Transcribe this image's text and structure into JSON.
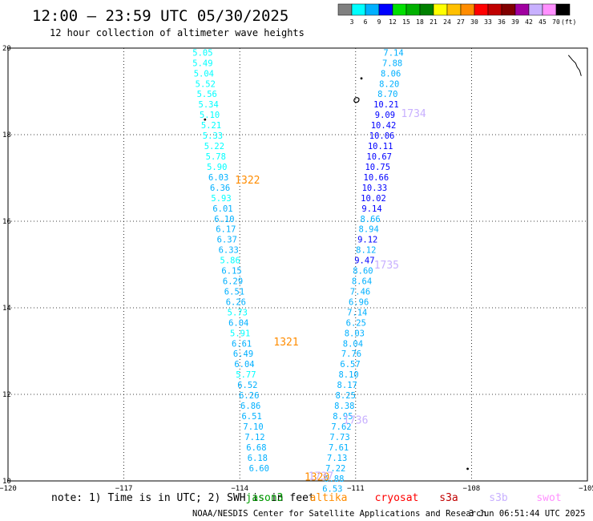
{
  "header": {
    "title": "12:00 – 23:59 UTC 05/30/2025",
    "subtitle": "12 hour collection of altimeter wave heights"
  },
  "colorbar": {
    "unit_label": "(ft)",
    "bins": [
      {
        "color": "#808080",
        "label": "3"
      },
      {
        "color": "#00ffff",
        "label": "6"
      },
      {
        "color": "#00b0ff",
        "label": "9"
      },
      {
        "color": "#0000ff",
        "label": "12"
      },
      {
        "color": "#00e000",
        "label": "15"
      },
      {
        "color": "#00b000",
        "label": "18"
      },
      {
        "color": "#008000",
        "label": "21"
      },
      {
        "color": "#ffff00",
        "label": "24"
      },
      {
        "color": "#ffc000",
        "label": "27"
      },
      {
        "color": "#ff8c00",
        "label": "30"
      },
      {
        "color": "#ff0000",
        "label": "33"
      },
      {
        "color": "#c00000",
        "label": "36"
      },
      {
        "color": "#800000",
        "label": "39"
      },
      {
        "color": "#a000a0",
        "label": "42"
      },
      {
        "color": "#c8b0ff",
        "label": "45"
      },
      {
        "color": "#ff90ff",
        "label": "70"
      },
      {
        "color": "#000000",
        "label": ""
      }
    ]
  },
  "chart_data": {
    "type": "scatter",
    "xlim": [
      -120,
      -105
    ],
    "ylim": [
      10,
      20
    ],
    "grid": true,
    "xticks": [
      {
        "value": -120,
        "label": "−120"
      },
      {
        "value": -117,
        "label": "−117"
      },
      {
        "value": -114,
        "label": "−114"
      },
      {
        "value": -111,
        "label": "−111"
      },
      {
        "value": -108,
        "label": "−108"
      },
      {
        "value": -105,
        "label": "−105"
      }
    ],
    "yticks": [
      {
        "value": 10,
        "label": "10"
      },
      {
        "value": 12,
        "label": "12"
      },
      {
        "value": 14,
        "label": "14"
      },
      {
        "value": 16,
        "label": "16"
      },
      {
        "value": 18,
        "label": "18"
      },
      {
        "value": 20,
        "label": "20"
      }
    ],
    "tracks": [
      {
        "points": [
          {
            "lon": -114.96,
            "lat": 19.9,
            "v": "5.05",
            "c": "#00ffff"
          },
          {
            "lon": -114.96,
            "lat": 19.66,
            "v": "5.49",
            "c": "#00ffff"
          },
          {
            "lon": -114.93,
            "lat": 19.42,
            "v": "5.04",
            "c": "#00ffff"
          },
          {
            "lon": -114.89,
            "lat": 19.18,
            "v": "5.52",
            "c": "#00ffff"
          },
          {
            "lon": -114.85,
            "lat": 18.94,
            "v": "5.56",
            "c": "#00ffff"
          },
          {
            "lon": -114.81,
            "lat": 18.7,
            "v": "5.34",
            "c": "#00ffff"
          },
          {
            "lon": -114.78,
            "lat": 18.46,
            "v": "5.10",
            "c": "#00ffff"
          },
          {
            "lon": -114.74,
            "lat": 18.22,
            "v": "5.21",
            "c": "#00ffff"
          },
          {
            "lon": -114.7,
            "lat": 17.98,
            "v": "5.33",
            "c": "#00ffff"
          },
          {
            "lon": -114.66,
            "lat": 17.74,
            "v": "5.22",
            "c": "#00ffff"
          },
          {
            "lon": -114.62,
            "lat": 17.5,
            "v": "5.78",
            "c": "#00ffff"
          },
          {
            "lon": -114.59,
            "lat": 17.26,
            "v": "5.90",
            "c": "#00ffff"
          },
          {
            "lon": -114.55,
            "lat": 17.02,
            "v": "6.03",
            "c": "#00b0ff"
          },
          {
            "lon": -114.51,
            "lat": 16.78,
            "v": "6.36",
            "c": "#00b0ff"
          },
          {
            "lon": -114.48,
            "lat": 16.54,
            "v": "5.93",
            "c": "#00ffff"
          },
          {
            "lon": -114.44,
            "lat": 16.3,
            "v": "6.01",
            "c": "#00b0ff"
          },
          {
            "lon": -114.4,
            "lat": 16.06,
            "v": "6.10",
            "c": "#00b0ff"
          },
          {
            "lon": -114.36,
            "lat": 15.82,
            "v": "6.17",
            "c": "#00b0ff"
          },
          {
            "lon": -114.33,
            "lat": 15.58,
            "v": "6.37",
            "c": "#00b0ff"
          },
          {
            "lon": -114.29,
            "lat": 15.34,
            "v": "6.33",
            "c": "#00b0ff"
          },
          {
            "lon": -114.25,
            "lat": 15.1,
            "v": "5.86",
            "c": "#00ffff"
          },
          {
            "lon": -114.21,
            "lat": 14.86,
            "v": "6.15",
            "c": "#00b0ff"
          },
          {
            "lon": -114.18,
            "lat": 14.62,
            "v": "6.29",
            "c": "#00b0ff"
          },
          {
            "lon": -114.14,
            "lat": 14.38,
            "v": "6.51",
            "c": "#00b0ff"
          },
          {
            "lon": -114.1,
            "lat": 14.14,
            "v": "6.26",
            "c": "#00b0ff"
          },
          {
            "lon": -114.06,
            "lat": 13.9,
            "v": "5.73",
            "c": "#00ffff"
          },
          {
            "lon": -114.03,
            "lat": 13.66,
            "v": "6.04",
            "c": "#00b0ff"
          },
          {
            "lon": -113.99,
            "lat": 13.42,
            "v": "5.91",
            "c": "#00ffff"
          },
          {
            "lon": -113.95,
            "lat": 13.18,
            "v": "6.61",
            "c": "#00b0ff"
          },
          {
            "lon": -113.91,
            "lat": 12.94,
            "v": "6.49",
            "c": "#00b0ff"
          },
          {
            "lon": -113.88,
            "lat": 12.7,
            "v": "6.04",
            "c": "#00b0ff"
          },
          {
            "lon": -113.84,
            "lat": 12.46,
            "v": "5.77",
            "c": "#00ffff"
          },
          {
            "lon": -113.8,
            "lat": 12.22,
            "v": "6.52",
            "c": "#00b0ff"
          },
          {
            "lon": -113.76,
            "lat": 11.98,
            "v": "6.26",
            "c": "#00b0ff"
          },
          {
            "lon": -113.72,
            "lat": 11.74,
            "v": "6.86",
            "c": "#00b0ff"
          },
          {
            "lon": -113.69,
            "lat": 11.5,
            "v": "6.51",
            "c": "#00b0ff"
          },
          {
            "lon": -113.65,
            "lat": 11.26,
            "v": "7.10",
            "c": "#00b0ff"
          },
          {
            "lon": -113.61,
            "lat": 11.02,
            "v": "7.12",
            "c": "#00b0ff"
          },
          {
            "lon": -113.57,
            "lat": 10.78,
            "v": "6.68",
            "c": "#00b0ff"
          },
          {
            "lon": -113.54,
            "lat": 10.54,
            "v": "6.18",
            "c": "#00b0ff"
          },
          {
            "lon": -113.5,
            "lat": 10.3,
            "v": "6.60",
            "c": "#00b0ff"
          }
        ]
      },
      {
        "points": [
          {
            "lon": -110.02,
            "lat": 19.9,
            "v": "7.14",
            "c": "#00b0ff"
          },
          {
            "lon": -110.05,
            "lat": 19.66,
            "v": "7.88",
            "c": "#00b0ff"
          },
          {
            "lon": -110.09,
            "lat": 19.42,
            "v": "8.06",
            "c": "#00b0ff"
          },
          {
            "lon": -110.13,
            "lat": 19.18,
            "v": "8.20",
            "c": "#00b0ff"
          },
          {
            "lon": -110.17,
            "lat": 18.94,
            "v": "8.70",
            "c": "#00b0ff"
          },
          {
            "lon": -110.21,
            "lat": 18.7,
            "v": "10.21",
            "c": "#0000ff"
          },
          {
            "lon": -110.24,
            "lat": 18.46,
            "v": "9.09",
            "c": "#0000ff"
          },
          {
            "lon": -110.28,
            "lat": 18.22,
            "v": "10.42",
            "c": "#0000ff"
          },
          {
            "lon": -110.32,
            "lat": 17.98,
            "v": "10.06",
            "c": "#0000ff"
          },
          {
            "lon": -110.36,
            "lat": 17.74,
            "v": "10.11",
            "c": "#0000ff"
          },
          {
            "lon": -110.39,
            "lat": 17.5,
            "v": "10.67",
            "c": "#0000ff"
          },
          {
            "lon": -110.43,
            "lat": 17.26,
            "v": "10.75",
            "c": "#0000ff"
          },
          {
            "lon": -110.47,
            "lat": 17.02,
            "v": "10.66",
            "c": "#0000ff"
          },
          {
            "lon": -110.51,
            "lat": 16.78,
            "v": "10.33",
            "c": "#0000ff"
          },
          {
            "lon": -110.54,
            "lat": 16.54,
            "v": "10.02",
            "c": "#0000ff"
          },
          {
            "lon": -110.58,
            "lat": 16.3,
            "v": "9.14",
            "c": "#0000ff"
          },
          {
            "lon": -110.62,
            "lat": 16.06,
            "v": "8.66",
            "c": "#00b0ff"
          },
          {
            "lon": -110.66,
            "lat": 15.82,
            "v": "8.94",
            "c": "#00b0ff"
          },
          {
            "lon": -110.69,
            "lat": 15.58,
            "v": "9.12",
            "c": "#0000ff"
          },
          {
            "lon": -110.73,
            "lat": 15.34,
            "v": "8.12",
            "c": "#00b0ff"
          },
          {
            "lon": -110.77,
            "lat": 15.1,
            "v": "9.47",
            "c": "#0000ff"
          },
          {
            "lon": -110.81,
            "lat": 14.86,
            "v": "8.60",
            "c": "#00b0ff"
          },
          {
            "lon": -110.84,
            "lat": 14.62,
            "v": "8.64",
            "c": "#00b0ff"
          },
          {
            "lon": -110.88,
            "lat": 14.38,
            "v": "7.46",
            "c": "#00b0ff"
          },
          {
            "lon": -110.92,
            "lat": 14.14,
            "v": "6.96",
            "c": "#00b0ff"
          },
          {
            "lon": -110.96,
            "lat": 13.9,
            "v": "7.14",
            "c": "#00b0ff"
          },
          {
            "lon": -110.99,
            "lat": 13.66,
            "v": "6.25",
            "c": "#00b0ff"
          },
          {
            "lon": -111.03,
            "lat": 13.42,
            "v": "8.03",
            "c": "#00b0ff"
          },
          {
            "lon": -111.07,
            "lat": 13.18,
            "v": "8.04",
            "c": "#00b0ff"
          },
          {
            "lon": -111.11,
            "lat": 12.94,
            "v": "7.76",
            "c": "#00b0ff"
          },
          {
            "lon": -111.14,
            "lat": 12.7,
            "v": "6.57",
            "c": "#00b0ff"
          },
          {
            "lon": -111.18,
            "lat": 12.46,
            "v": "8.10",
            "c": "#00b0ff"
          },
          {
            "lon": -111.22,
            "lat": 12.22,
            "v": "8.17",
            "c": "#00b0ff"
          },
          {
            "lon": -111.26,
            "lat": 11.98,
            "v": "8.25",
            "c": "#00b0ff"
          },
          {
            "lon": -111.29,
            "lat": 11.74,
            "v": "8.38",
            "c": "#00b0ff"
          },
          {
            "lon": -111.33,
            "lat": 11.5,
            "v": "8.95",
            "c": "#00b0ff"
          },
          {
            "lon": -111.37,
            "lat": 11.26,
            "v": "7.62",
            "c": "#00b0ff"
          },
          {
            "lon": -111.41,
            "lat": 11.02,
            "v": "7.73",
            "c": "#00b0ff"
          },
          {
            "lon": -111.44,
            "lat": 10.78,
            "v": "7.61",
            "c": "#00b0ff"
          },
          {
            "lon": -111.48,
            "lat": 10.54,
            "v": "7.13",
            "c": "#00b0ff"
          },
          {
            "lon": -111.52,
            "lat": 10.3,
            "v": "7.22",
            "c": "#00b0ff"
          },
          {
            "lon": -111.56,
            "lat": 10.06,
            "v": "6.88",
            "c": "#00b0ff"
          },
          {
            "lon": -111.6,
            "lat": 9.82,
            "v": "6.53",
            "c": "#00b0ff"
          }
        ]
      }
    ],
    "pass_labels": [
      {
        "lon": -109.5,
        "lat": 18.5,
        "text": "1734",
        "c": "#c8b0ff"
      },
      {
        "lon": -110.2,
        "lat": 15.0,
        "text": "1735",
        "c": "#c8b0ff"
      },
      {
        "lon": -113.8,
        "lat": 16.96,
        "text": "1322",
        "c": "#ff8c00"
      },
      {
        "lon": -112.8,
        "lat": 13.22,
        "text": "1321",
        "c": "#ff8c00"
      },
      {
        "lon": -111.0,
        "lat": 11.42,
        "text": "1736",
        "c": "#c8b0ff"
      },
      {
        "lon": -112.0,
        "lat": 10.1,
        "text": "1320",
        "c": "#ff8c00"
      },
      {
        "lon": -111.9,
        "lat": 10.12,
        "text": "1737",
        "c": "#c8b0ff"
      }
    ],
    "land_marks": [
      {
        "lon": -110.85,
        "lat": 19.3,
        "kind": "dot"
      },
      {
        "lon": -110.98,
        "lat": 18.8,
        "kind": "island"
      },
      {
        "lon": -114.9,
        "lat": 18.35,
        "kind": "dot"
      },
      {
        "lon": -108.1,
        "lat": 10.28,
        "kind": "dot"
      },
      {
        "lon": -105.45,
        "lat": 19.8,
        "kind": "coast"
      }
    ]
  },
  "note": {
    "prefix": "note: 1) Time is in UTC; 2) SWH is in feet",
    "satellites": [
      {
        "name": "jason3",
        "color": "#00a000"
      },
      {
        "name": "altika",
        "color": "#ff8c00"
      },
      {
        "name": "cryosat",
        "color": "#ff0000"
      },
      {
        "name": "s3a",
        "color": "#c00000"
      },
      {
        "name": "s3b",
        "color": "#c8b0ff"
      },
      {
        "name": "swot",
        "color": "#ff90ff"
      }
    ]
  },
  "footer": {
    "credit": "NOAA/NESDIS Center for Satellite Applications and Research",
    "timestamp": "3 Jun 06:51:44 UTC 2025"
  }
}
